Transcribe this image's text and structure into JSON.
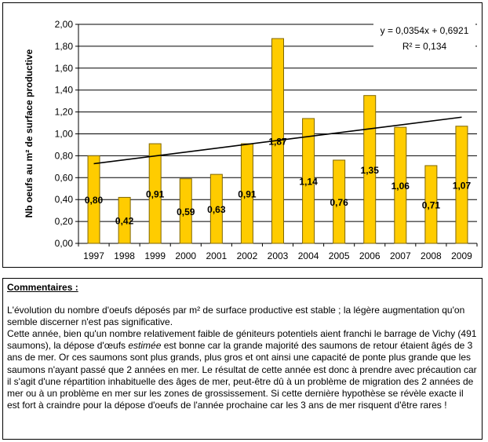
{
  "chart_data": {
    "type": "bar",
    "ylabel": "Nb oeufs au m² de surface productive",
    "xlabel": "",
    "ylim": [
      0,
      2
    ],
    "ytick_step": 0.2,
    "yticks": [
      "0,00",
      "0,20",
      "0,40",
      "0,60",
      "0,80",
      "1,00",
      "1,20",
      "1,40",
      "1,60",
      "1,80",
      "2,00"
    ],
    "grid": true,
    "categories": [
      "1997",
      "1998",
      "1999",
      "2000",
      "2001",
      "2002",
      "2003",
      "2004",
      "2005",
      "2006",
      "2007",
      "2008",
      "2009"
    ],
    "values": [
      0.8,
      0.42,
      0.91,
      0.59,
      0.63,
      0.91,
      1.87,
      1.14,
      0.76,
      1.35,
      1.06,
      0.71,
      1.07
    ],
    "labels": [
      "0,80",
      "0,42",
      "0,91",
      "0,59",
      "0,63",
      "0,91",
      "1,87",
      "1,14",
      "0,76",
      "1,35",
      "1,06",
      "0,71",
      "1,07"
    ],
    "bar_color": "#FFCC00",
    "bar_edge_color": "#7F6600",
    "trendline": {
      "slope": 0.0354,
      "intercept": 0.6921,
      "equation": "y = 0,0354x + 0,6921",
      "r2": "R² = 0,134"
    }
  },
  "comments": {
    "title": "Commentaires :",
    "paragraph1": "L'évolution du nombre d'oeufs déposés par m² de surface productive est stable ; la légère augmentation qu'on semble discerner n'est pas significative.",
    "paragraph2_before": "Cette année, bien qu'un nombre relativement faible de géniteurs potentiels aient franchi le barrage de Vichy (491 saumons), la dépose d'œufs ",
    "paragraph2_emph": "estimée",
    "paragraph2_after": " est bonne car la grande majorité des saumons de retour étaient âgés de 3 ans de mer. Or ces saumons sont plus grands, plus gros et ont ainsi une capacité de ponte plus grande que les saumons n'ayant passé que 2 années en mer. Le résultat de cette année est donc à prendre avec précaution car il s'agit d'une répartition inhabituelle des âges de mer, peut-être dû à un problème de migration des 2 années de mer ou à un problème en mer sur les zones de grossissement. Si cette dernière hypothèse se révèle exacte il est fort à craindre pour la dépose d'oeufs de l'année prochaine car les 3 ans de mer risquent d'être rares !"
  }
}
